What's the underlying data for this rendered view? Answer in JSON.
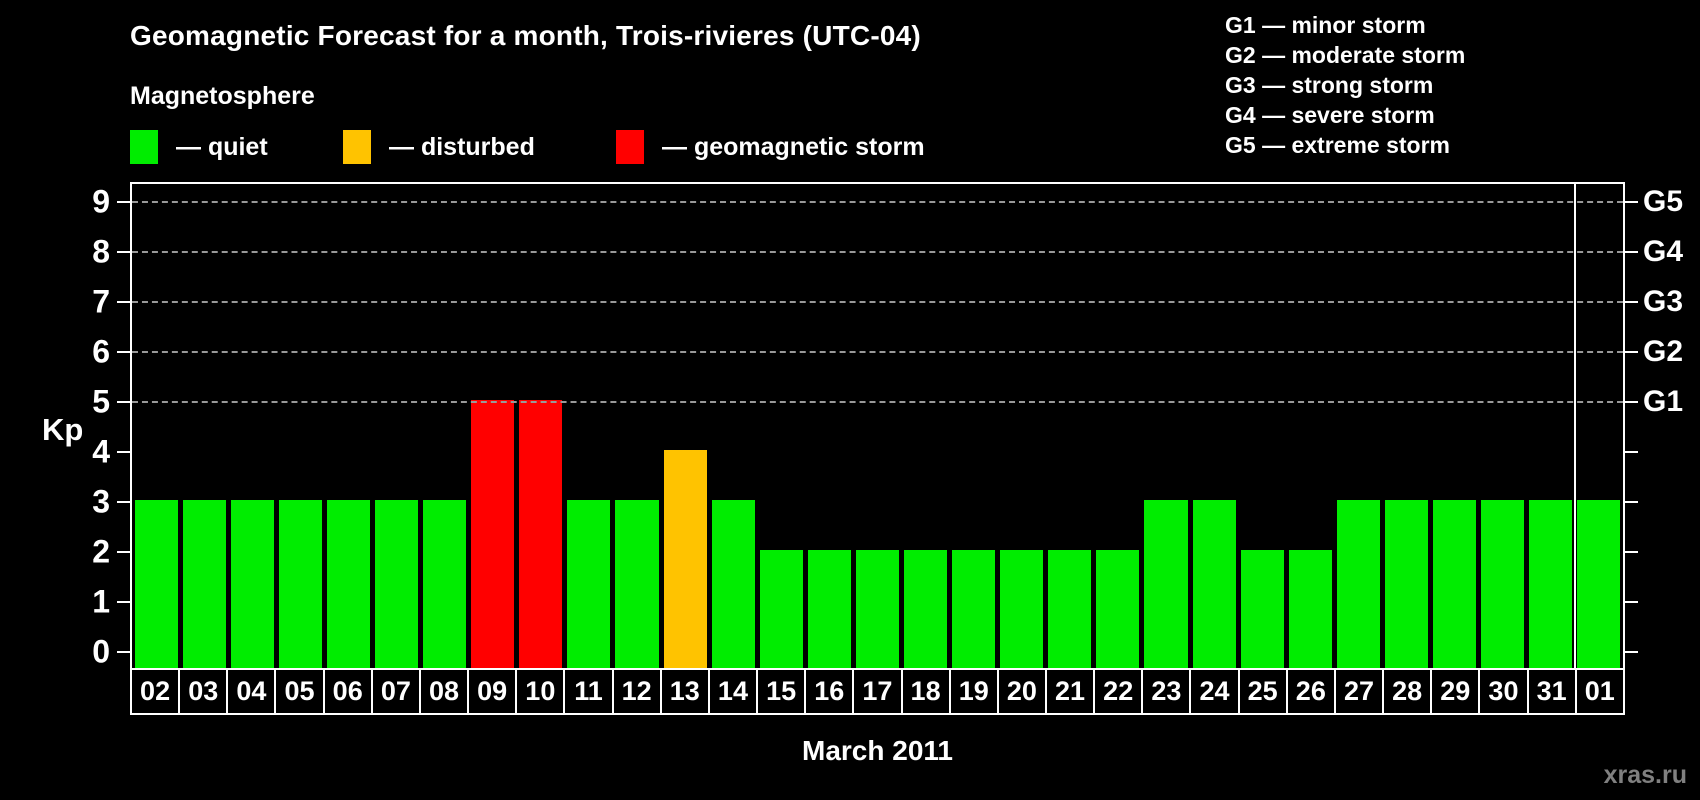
{
  "title": "Geomagnetic Forecast for a month, Trois-rivieres (UTC-04)",
  "watermark": "xras.ru",
  "legend": {
    "heading": "Magnetosphere",
    "items": [
      {
        "key": "quiet",
        "label": "— quiet",
        "color": "#00ED00"
      },
      {
        "key": "disturbed",
        "label": "— disturbed",
        "color": "#FFC300"
      },
      {
        "key": "storm",
        "label": "— geomagnetic storm",
        "color": "#FF0000"
      }
    ]
  },
  "g_legend": [
    "G1 — minor storm",
    "G2 — moderate storm",
    "G3 — strong storm",
    "G4 — severe storm",
    "G5 — extreme storm"
  ],
  "chart_data": {
    "type": "bar",
    "title": "Geomagnetic Forecast for a month, Trois-rivieres (UTC-04)",
    "xlabel": "March 2011",
    "ylabel": "Kp",
    "ylim": [
      0,
      9
    ],
    "yticks": [
      0,
      1,
      2,
      3,
      4,
      5,
      6,
      7,
      8,
      9
    ],
    "gridlines_at": [
      5,
      6,
      7,
      8,
      9
    ],
    "grid": "dashed horizontal at G-storm levels only",
    "legend_position": "top",
    "right_axis_labels": [
      {
        "text": "G1",
        "kp": 5
      },
      {
        "text": "G2",
        "kp": 6
      },
      {
        "text": "G3",
        "kp": 7
      },
      {
        "text": "G4",
        "kp": 8
      },
      {
        "text": "G5",
        "kp": 9
      }
    ],
    "categories": [
      "02",
      "03",
      "04",
      "05",
      "06",
      "07",
      "08",
      "09",
      "10",
      "11",
      "12",
      "13",
      "14",
      "15",
      "16",
      "17",
      "18",
      "19",
      "20",
      "21",
      "22",
      "23",
      "24",
      "25",
      "26",
      "27",
      "28",
      "29",
      "30",
      "31",
      "01"
    ],
    "values": [
      3,
      3,
      3,
      3,
      3,
      3,
      3,
      5,
      5,
      3,
      3,
      4,
      3,
      2,
      2,
      2,
      2,
      2,
      2,
      2,
      2,
      3,
      3,
      2,
      2,
      3,
      3,
      3,
      3,
      3,
      3
    ],
    "states": [
      "quiet",
      "quiet",
      "quiet",
      "quiet",
      "quiet",
      "quiet",
      "quiet",
      "storm",
      "storm",
      "quiet",
      "quiet",
      "disturbed",
      "quiet",
      "quiet",
      "quiet",
      "quiet",
      "quiet",
      "quiet",
      "quiet",
      "quiet",
      "quiet",
      "quiet",
      "quiet",
      "quiet",
      "quiet",
      "quiet",
      "quiet",
      "quiet",
      "quiet",
      "quiet",
      "quiet"
    ],
    "month_separator_index": 30,
    "colors": {
      "quiet": "#00ED00",
      "disturbed": "#FFC300",
      "storm": "#FF0000",
      "gridline": "#999999"
    }
  }
}
